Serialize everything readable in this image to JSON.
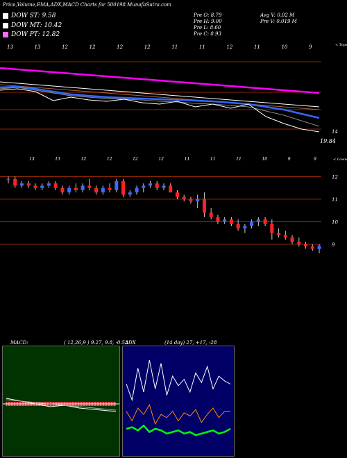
{
  "header": {
    "title": "Price,Volume,EMA,ADX,MACD Charts for 500198 MunafaSutra.com"
  },
  "legend": [
    {
      "label": "DOW ST: 9.58",
      "color": "#ffffff"
    },
    {
      "label": "DOW MT: 10.42",
      "color": "#ffffff"
    },
    {
      "label": "DOW PT: 12.82",
      "color": "#ff66ff"
    }
  ],
  "ohlc": {
    "open": "Pre O: 8.79",
    "high": "Pre H: 9.00",
    "low": "Pre L: 8.60",
    "close": "Pre C: 8.93"
  },
  "volume_info": {
    "avg": "Avg V: 0.02 M",
    "pre": "Pre V: 0.019 M"
  },
  "colors": {
    "up": "#4466ff",
    "down": "#ff2222",
    "grid": "#8b2500",
    "ema_long": "#ff00ff",
    "ema_mid": "#3366ff",
    "macd_bg": "#003300",
    "adx_bg": "#000066"
  },
  "chart_data": [
    {
      "type": "line",
      "panel": "price-ema",
      "corner_label": "< Tope",
      "top_ticks": [
        "13",
        "13",
        "12",
        "12",
        "12",
        "12",
        "11",
        "11",
        "12",
        "11",
        "10",
        "9"
      ],
      "ylabels": [
        "14",
        "19.84"
      ],
      "series": [
        {
          "color": "#ff00ff",
          "values": [
            98,
            100,
            102,
            104,
            106,
            108,
            110,
            112,
            114,
            116,
            118,
            120,
            122,
            124,
            126,
            128,
            130,
            132,
            134
          ]
        },
        {
          "color": "#ffffff",
          "values": [
            118,
            120,
            122,
            124,
            126,
            128,
            130,
            132,
            134,
            136,
            138,
            140,
            142,
            144,
            146,
            148,
            150,
            152,
            154
          ]
        },
        {
          "color": "#aa6633",
          "values": [
            122,
            124,
            126,
            128,
            130,
            132,
            134,
            136,
            138,
            140,
            142,
            144,
            146,
            148,
            150,
            152,
            154,
            156,
            158
          ]
        },
        {
          "color": "#3366ff",
          "values": [
            126,
            125,
            128,
            132,
            136,
            138,
            140,
            141,
            142,
            143,
            144,
            145,
            146,
            148,
            150,
            154,
            158,
            164,
            170
          ]
        },
        {
          "color": "#888888",
          "values": [
            128,
            126,
            130,
            134,
            138,
            140,
            142,
            143,
            144,
            146,
            147,
            149,
            150,
            152,
            154,
            160,
            166,
            174,
            182
          ]
        },
        {
          "color": "#ffffff",
          "values": [
            130,
            128,
            132,
            145,
            140,
            144,
            146,
            143,
            148,
            150,
            146,
            154,
            150,
            156,
            150,
            168,
            178,
            186,
            190
          ]
        }
      ]
    },
    {
      "type": "candlestick",
      "panel": "price",
      "corner_label": "< Loww",
      "top_ticks": [
        "13",
        "13",
        "12",
        "12",
        "12",
        "12",
        "11",
        "11",
        "11",
        "10",
        "9",
        "9"
      ],
      "ylabels": [
        "12",
        "11",
        "10",
        "9"
      ],
      "ylim": [
        8.6,
        12.2
      ],
      "candles": [
        [
          11.9,
          12.0,
          11.7,
          11.9
        ],
        [
          11.9,
          12.0,
          11.5,
          11.6
        ],
        [
          11.6,
          11.8,
          11.5,
          11.7
        ],
        [
          11.7,
          11.8,
          11.5,
          11.6
        ],
        [
          11.6,
          11.7,
          11.4,
          11.5
        ],
        [
          11.5,
          11.7,
          11.4,
          11.6
        ],
        [
          11.6,
          11.8,
          11.5,
          11.7
        ],
        [
          11.7,
          11.8,
          11.4,
          11.5
        ],
        [
          11.5,
          11.6,
          11.2,
          11.3
        ],
        [
          11.3,
          11.6,
          11.2,
          11.5
        ],
        [
          11.5,
          11.7,
          11.3,
          11.4
        ],
        [
          11.4,
          11.7,
          11.3,
          11.6
        ],
        [
          11.6,
          11.9,
          11.4,
          11.5
        ],
        [
          11.5,
          11.6,
          11.2,
          11.3
        ],
        [
          11.3,
          11.6,
          11.2,
          11.5
        ],
        [
          11.5,
          11.7,
          11.3,
          11.4
        ],
        [
          11.4,
          11.9,
          11.3,
          11.8
        ],
        [
          11.8,
          11.9,
          11.1,
          11.2
        ],
        [
          11.2,
          11.4,
          11.1,
          11.3
        ],
        [
          11.3,
          11.6,
          11.2,
          11.5
        ],
        [
          11.5,
          11.7,
          11.3,
          11.6
        ],
        [
          11.6,
          11.8,
          11.5,
          11.7
        ],
        [
          11.7,
          11.8,
          11.4,
          11.5
        ],
        [
          11.5,
          11.7,
          11.4,
          11.6
        ],
        [
          11.6,
          11.7,
          11.3,
          11.3
        ],
        [
          11.3,
          11.4,
          11.0,
          11.1
        ],
        [
          11.1,
          11.2,
          10.9,
          11.0
        ],
        [
          11.0,
          11.1,
          10.8,
          10.9
        ],
        [
          10.9,
          11.2,
          10.6,
          11.0
        ],
        [
          11.0,
          11.3,
          10.2,
          10.4
        ],
        [
          10.4,
          10.6,
          10.1,
          10.2
        ],
        [
          10.2,
          10.3,
          9.9,
          10.0
        ],
        [
          10.0,
          10.2,
          9.9,
          10.1
        ],
        [
          10.1,
          10.2,
          9.8,
          9.9
        ],
        [
          9.9,
          10.1,
          9.6,
          9.7
        ],
        [
          9.7,
          9.9,
          9.5,
          9.8
        ],
        [
          9.8,
          10.1,
          9.7,
          10.0
        ],
        [
          10.0,
          10.2,
          9.8,
          10.1
        ],
        [
          10.1,
          10.2,
          9.8,
          9.9
        ],
        [
          9.9,
          10.1,
          9.2,
          9.5
        ],
        [
          9.5,
          9.7,
          9.3,
          9.4
        ],
        [
          9.4,
          9.6,
          9.2,
          9.3
        ],
        [
          9.3,
          9.4,
          9.0,
          9.1
        ],
        [
          9.1,
          9.3,
          8.9,
          9.0
        ],
        [
          9.0,
          9.1,
          8.8,
          8.9
        ],
        [
          8.9,
          9.0,
          8.7,
          8.8
        ],
        [
          8.79,
          9.0,
          8.6,
          8.93
        ]
      ]
    },
    {
      "type": "line",
      "panel": "macd",
      "title": "MACD:",
      "params": "( 12,26,9 ) 9.27,  9.8,  -0.53",
      "series": [
        {
          "color": "#ffffff",
          "values": [
            0.4,
            0.3,
            0.2,
            0.1,
            0.0,
            -0.1,
            -0.2,
            -0.15,
            -0.1,
            -0.2,
            -0.3,
            -0.35,
            -0.4,
            -0.45,
            -0.5,
            -0.53
          ]
        },
        {
          "color": "#aaaaaa",
          "values": [
            0.3,
            0.25,
            0.2,
            0.15,
            0.1,
            0.05,
            0.0,
            -0.05,
            -0.1,
            -0.15,
            -0.2,
            -0.25,
            -0.3,
            -0.35,
            -0.4,
            -0.45
          ]
        }
      ]
    },
    {
      "type": "line",
      "panel": "adx",
      "title": "ADX",
      "params": "(14 day) 27,  +17,  -28",
      "series": [
        {
          "color": "#ffffff",
          "values": [
            45,
            35,
            55,
            40,
            60,
            42,
            58,
            38,
            50,
            44,
            48,
            40,
            52,
            46,
            56,
            42,
            50,
            47,
            45
          ]
        },
        {
          "color": "#00ff00",
          "values": [
            17,
            18,
            16,
            19,
            15,
            17,
            16,
            14,
            15,
            16,
            14,
            15,
            13,
            14,
            15,
            16,
            14,
            15,
            17
          ]
        },
        {
          "color": "#ff8800",
          "values": [
            28,
            22,
            30,
            26,
            32,
            20,
            26,
            24,
            28,
            22,
            27,
            25,
            29,
            21,
            26,
            30,
            24,
            28,
            28
          ]
        }
      ]
    }
  ]
}
